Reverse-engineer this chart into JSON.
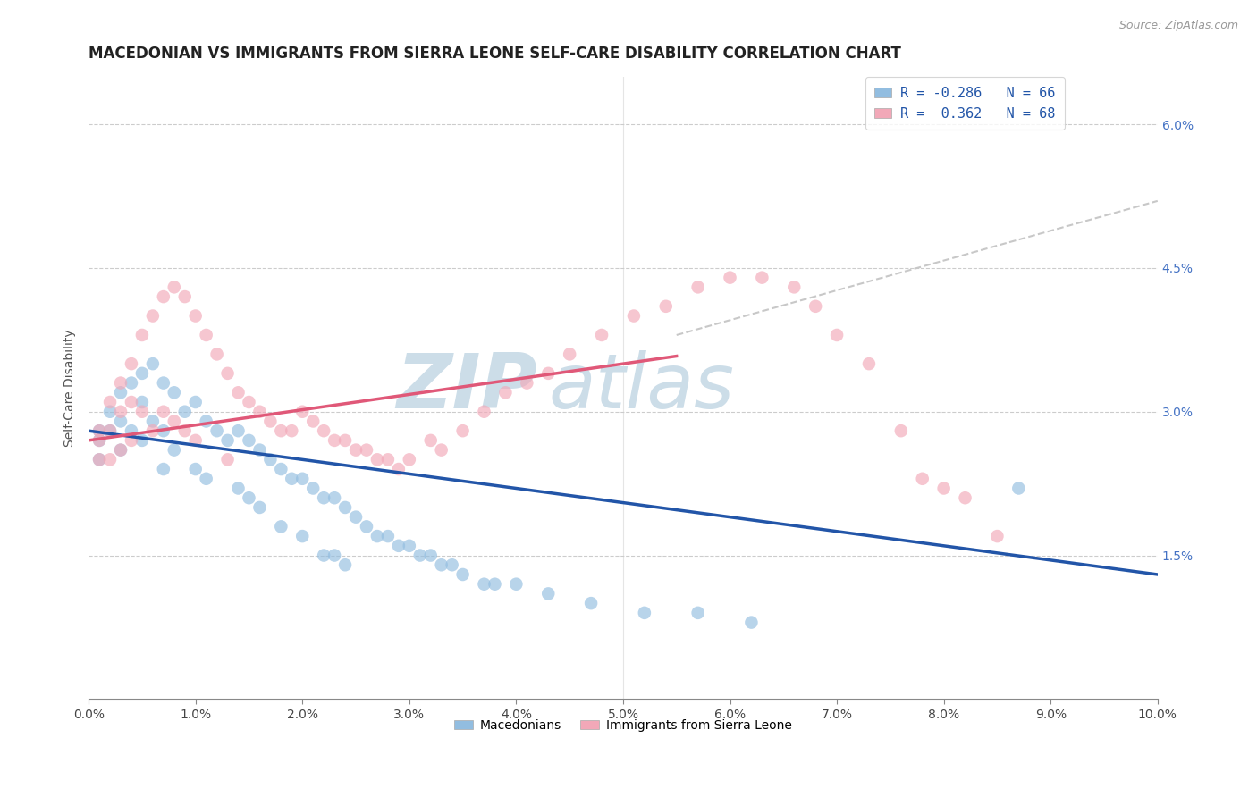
{
  "title": "MACEDONIAN VS IMMIGRANTS FROM SIERRA LEONE SELF-CARE DISABILITY CORRELATION CHART",
  "source": "Source: ZipAtlas.com",
  "ylabel": "Self-Care Disability",
  "xlim": [
    0.0,
    0.1
  ],
  "ylim": [
    0.0,
    0.065
  ],
  "xticks": [
    0.0,
    0.01,
    0.02,
    0.03,
    0.04,
    0.05,
    0.06,
    0.07,
    0.08,
    0.09,
    0.1
  ],
  "xticklabels": [
    "0.0%",
    "1.0%",
    "2.0%",
    "3.0%",
    "4.0%",
    "5.0%",
    "6.0%",
    "7.0%",
    "8.0%",
    "9.0%",
    "10.0%"
  ],
  "yticks_right": [
    0.015,
    0.03,
    0.045,
    0.06
  ],
  "yticklabels_right": [
    "1.5%",
    "3.0%",
    "4.5%",
    "6.0%"
  ],
  "macedonians_color": "#92bde0",
  "sierra_leone_color": "#f2a8b8",
  "trend_blue_color": "#2255a8",
  "trend_pink_color": "#e05878",
  "trend_dashed_color": "#c8c8c8",
  "watermark_color": "#ccdde8",
  "background_color": "#ffffff",
  "title_fontsize": 12,
  "axis_label_fontsize": 10,
  "tick_fontsize": 10,
  "legend_r_blue": "R = -0.286",
  "legend_n_blue": "N = 66",
  "legend_r_pink": "R =  0.362",
  "legend_n_pink": "N = 68",
  "legend_color_blue": "#92bde0",
  "legend_color_pink": "#f2a8b8",
  "legend_text_color": "#2255a8",
  "macedonians_x": [
    0.001,
    0.001,
    0.001,
    0.002,
    0.002,
    0.003,
    0.003,
    0.003,
    0.004,
    0.004,
    0.005,
    0.005,
    0.005,
    0.006,
    0.006,
    0.007,
    0.007,
    0.007,
    0.008,
    0.008,
    0.009,
    0.01,
    0.01,
    0.011,
    0.011,
    0.012,
    0.013,
    0.014,
    0.014,
    0.015,
    0.015,
    0.016,
    0.016,
    0.017,
    0.018,
    0.018,
    0.019,
    0.02,
    0.02,
    0.021,
    0.022,
    0.022,
    0.023,
    0.023,
    0.024,
    0.024,
    0.025,
    0.026,
    0.027,
    0.028,
    0.029,
    0.03,
    0.031,
    0.032,
    0.033,
    0.034,
    0.035,
    0.037,
    0.038,
    0.04,
    0.043,
    0.047,
    0.052,
    0.057,
    0.062,
    0.087
  ],
  "macedonians_y": [
    0.028,
    0.027,
    0.025,
    0.03,
    0.028,
    0.032,
    0.029,
    0.026,
    0.033,
    0.028,
    0.034,
    0.031,
    0.027,
    0.035,
    0.029,
    0.033,
    0.028,
    0.024,
    0.032,
    0.026,
    0.03,
    0.031,
    0.024,
    0.029,
    0.023,
    0.028,
    0.027,
    0.028,
    0.022,
    0.027,
    0.021,
    0.026,
    0.02,
    0.025,
    0.024,
    0.018,
    0.023,
    0.023,
    0.017,
    0.022,
    0.021,
    0.015,
    0.021,
    0.015,
    0.02,
    0.014,
    0.019,
    0.018,
    0.017,
    0.017,
    0.016,
    0.016,
    0.015,
    0.015,
    0.014,
    0.014,
    0.013,
    0.012,
    0.012,
    0.012,
    0.011,
    0.01,
    0.009,
    0.009,
    0.008,
    0.022
  ],
  "sierra_leone_x": [
    0.001,
    0.001,
    0.001,
    0.002,
    0.002,
    0.002,
    0.003,
    0.003,
    0.003,
    0.004,
    0.004,
    0.004,
    0.005,
    0.005,
    0.006,
    0.006,
    0.007,
    0.007,
    0.008,
    0.008,
    0.009,
    0.009,
    0.01,
    0.01,
    0.011,
    0.012,
    0.013,
    0.013,
    0.014,
    0.015,
    0.016,
    0.017,
    0.018,
    0.019,
    0.02,
    0.021,
    0.022,
    0.023,
    0.024,
    0.025,
    0.026,
    0.027,
    0.028,
    0.029,
    0.03,
    0.032,
    0.033,
    0.035,
    0.037,
    0.039,
    0.041,
    0.043,
    0.045,
    0.048,
    0.051,
    0.054,
    0.057,
    0.06,
    0.063,
    0.066,
    0.068,
    0.07,
    0.073,
    0.076,
    0.078,
    0.08,
    0.082,
    0.085
  ],
  "sierra_leone_y": [
    0.028,
    0.027,
    0.025,
    0.031,
    0.028,
    0.025,
    0.033,
    0.03,
    0.026,
    0.035,
    0.031,
    0.027,
    0.038,
    0.03,
    0.04,
    0.028,
    0.042,
    0.03,
    0.043,
    0.029,
    0.042,
    0.028,
    0.04,
    0.027,
    0.038,
    0.036,
    0.034,
    0.025,
    0.032,
    0.031,
    0.03,
    0.029,
    0.028,
    0.028,
    0.03,
    0.029,
    0.028,
    0.027,
    0.027,
    0.026,
    0.026,
    0.025,
    0.025,
    0.024,
    0.025,
    0.027,
    0.026,
    0.028,
    0.03,
    0.032,
    0.033,
    0.034,
    0.036,
    0.038,
    0.04,
    0.041,
    0.043,
    0.044,
    0.044,
    0.043,
    0.041,
    0.038,
    0.035,
    0.028,
    0.023,
    0.022,
    0.021,
    0.017
  ],
  "blue_trend_x0": 0.0,
  "blue_trend_y0": 0.028,
  "blue_trend_x1": 0.1,
  "blue_trend_y1": 0.013,
  "pink_trend_x0": 0.0,
  "pink_trend_y0": 0.027,
  "pink_trend_x1": 0.1,
  "pink_trend_y1": 0.043,
  "dashed_trend_x0": 0.055,
  "dashed_trend_y0": 0.038,
  "dashed_trend_x1": 0.1,
  "dashed_trend_y1": 0.052
}
